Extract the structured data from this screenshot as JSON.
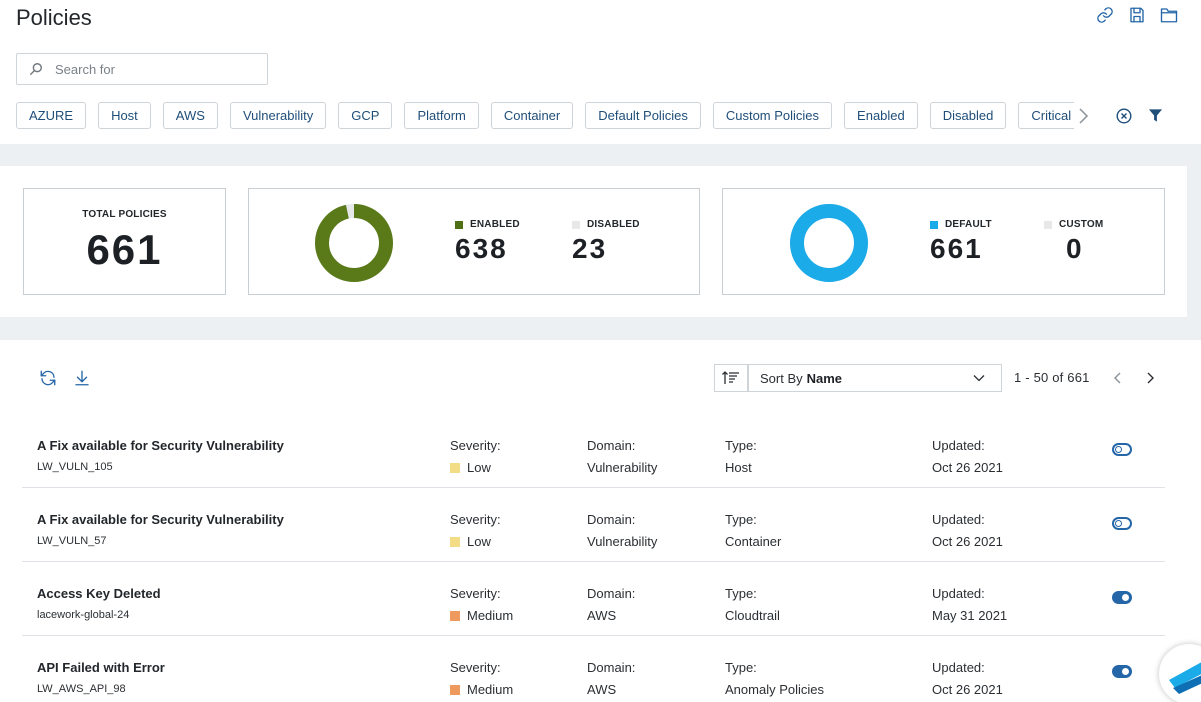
{
  "header": {
    "title": "Policies",
    "icons": [
      "link-icon",
      "save-icon",
      "folder-icon"
    ]
  },
  "search": {
    "placeholder": "Search for",
    "value": ""
  },
  "filters": {
    "chips": [
      "AZURE",
      "Host",
      "AWS",
      "Vulnerability",
      "GCP",
      "Platform",
      "Container",
      "Default Policies",
      "Custom Policies",
      "Enabled",
      "Disabled",
      "Critical"
    ]
  },
  "summary": {
    "total": {
      "label": "TOTAL POLICIES",
      "value": "661"
    },
    "status": {
      "enabled_label": "ENABLED",
      "enabled_value": "638",
      "disabled_label": "DISABLED",
      "disabled_value": "23",
      "enabled_color": "#5a7a1a",
      "disabled_color": "#e6e8ea"
    },
    "source": {
      "default_label": "DEFAULT",
      "default_value": "661",
      "custom_label": "CUSTOM",
      "custom_value": "0",
      "default_color": "#1aabe8",
      "custom_color": "#e6e8ea"
    }
  },
  "toolbar": {
    "sort_prefix": "Sort By",
    "sort_value": "Name",
    "paging": "1 - 50 of 661"
  },
  "labels": {
    "severity": "Severity:",
    "domain": "Domain:",
    "type": "Type:",
    "updated": "Updated:"
  },
  "severity_colors": {
    "Low": "#f3dc86",
    "Medium": "#ee9a5f"
  },
  "policies": [
    {
      "name": "A Fix available for Security Vulnerability",
      "id": "LW_VULN_105",
      "severity": "Low",
      "domain": "Vulnerability",
      "type": "Host",
      "updated": "Oct 26 2021",
      "enabled": false
    },
    {
      "name": "A Fix available for Security Vulnerability",
      "id": "LW_VULN_57",
      "severity": "Low",
      "domain": "Vulnerability",
      "type": "Container",
      "updated": "Oct 26 2021",
      "enabled": false
    },
    {
      "name": "Access Key Deleted",
      "id": "lacework-global-24",
      "severity": "Medium",
      "domain": "AWS",
      "type": "Cloudtrail",
      "updated": "May 31 2021",
      "enabled": true
    },
    {
      "name": "API Failed with Error",
      "id": "LW_AWS_API_98",
      "severity": "Medium",
      "domain": "AWS",
      "type": "Anomaly Policies",
      "updated": "Oct 26 2021",
      "enabled": true
    }
  ]
}
